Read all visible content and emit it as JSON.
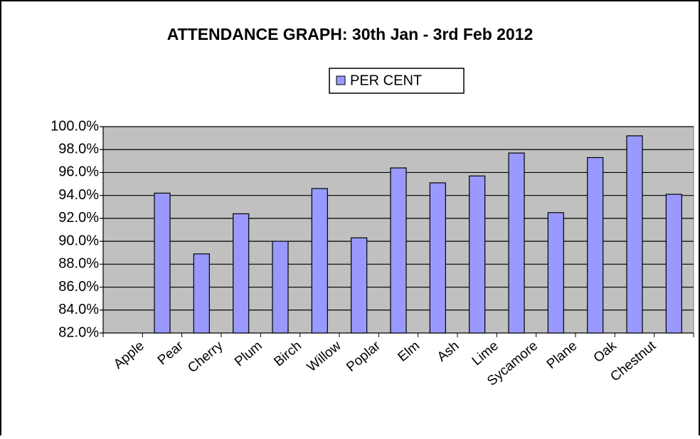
{
  "chart_data": {
    "type": "bar",
    "title": "ATTENDANCE GRAPH: 30th Jan - 3rd Feb 2012",
    "categories": [
      "Apple",
      "Pear",
      "Cherry",
      "Plum",
      "Birch",
      "Willow",
      "Poplar",
      "Elm",
      "Ash",
      "Lime",
      "Sycamore",
      "Plane",
      "Oak",
      "Chestnut"
    ],
    "series": [
      {
        "name": "PER CENT",
        "color": "#9999ff",
        "values": [
          94.2,
          88.9,
          92.4,
          90.0,
          94.6,
          90.3,
          96.4,
          95.1,
          95.7,
          97.7,
          92.5,
          97.3,
          99.2,
          94.1
        ]
      }
    ],
    "ylim": [
      82,
      100
    ],
    "yticks": [
      {
        "value": 82,
        "label": "82.0%"
      },
      {
        "value": 84,
        "label": "84.0%"
      },
      {
        "value": 86,
        "label": "86.0%"
      },
      {
        "value": 88,
        "label": "88.0%"
      },
      {
        "value": 90,
        "label": "90.0%"
      },
      {
        "value": 92,
        "label": "92.0%"
      },
      {
        "value": 94,
        "label": "94.0%"
      },
      {
        "value": 96,
        "label": "96.0%"
      },
      {
        "value": 98,
        "label": "98.0%"
      },
      {
        "value": 100,
        "label": "100.0%"
      }
    ],
    "grid": true,
    "legend": "top"
  }
}
